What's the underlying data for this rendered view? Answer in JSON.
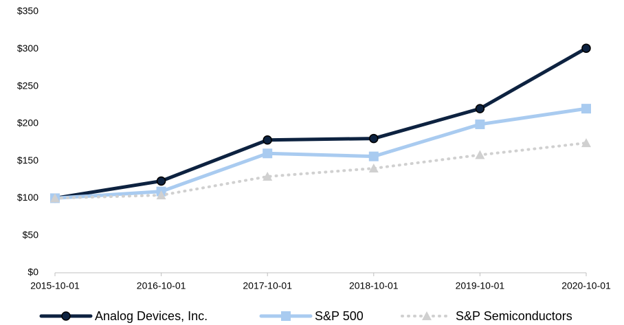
{
  "chart_data": {
    "type": "line",
    "x": [
      "2015-10-01",
      "2016-10-01",
      "2017-10-01",
      "2018-10-01",
      "2019-10-01",
      "2020-10-01"
    ],
    "series": [
      {
        "name": "Analog Devices, Inc.",
        "color": "#0d2240",
        "marker": "circle",
        "dash": "solid",
        "values": [
          100,
          123,
          178,
          180,
          220,
          301
        ]
      },
      {
        "name": "S&P 500",
        "color": "#a9cbf0",
        "marker": "square",
        "dash": "solid",
        "values": [
          100,
          109,
          160,
          156,
          199,
          220
        ]
      },
      {
        "name": "S&P Semiconductors",
        "color": "#d0d0d0",
        "marker": "triangle",
        "dash": "dotted",
        "values": [
          100,
          104,
          129,
          140,
          158,
          174
        ]
      }
    ],
    "ylim": [
      0,
      350
    ],
    "yticks": [
      {
        "value": 0,
        "label": "$0"
      },
      {
        "value": 50,
        "label": "$50"
      },
      {
        "value": 100,
        "label": "$100"
      },
      {
        "value": 150,
        "label": "$150"
      },
      {
        "value": 200,
        "label": "$200"
      },
      {
        "value": 250,
        "label": "$250"
      },
      {
        "value": 300,
        "label": "$300"
      },
      {
        "value": 350,
        "label": "$350"
      }
    ],
    "grid": false,
    "legend": "bottom"
  }
}
